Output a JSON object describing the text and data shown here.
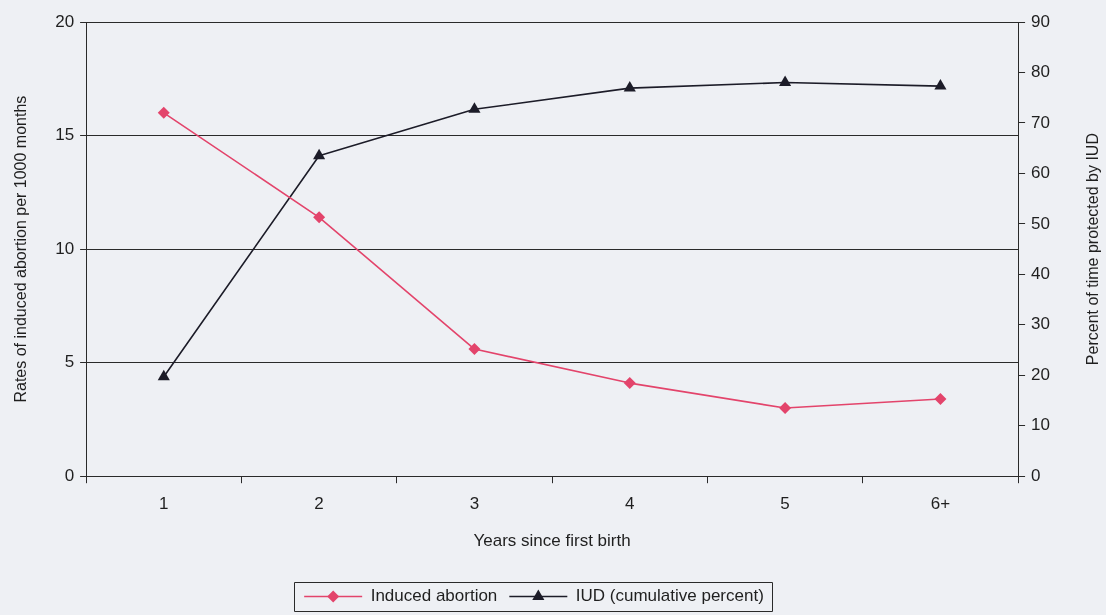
{
  "chart_data": {
    "type": "line",
    "xlabel": "Years since first birth",
    "ylabel": "Rates of induced abortion per 1000 months",
    "y2label": "Percent of time protected by IUD",
    "categories": [
      "1",
      "2",
      "3",
      "4",
      "5",
      "6+"
    ],
    "series": [
      {
        "name": "Induced abortion",
        "color": "#e3446b",
        "marker": "diamond",
        "values": [
          16.0,
          11.4,
          5.6,
          4.1,
          3.0,
          3.4
        ]
      },
      {
        "name": "IUD (cumulative percent)",
        "color": "#1c1c28",
        "marker": "triangle",
        "axis": "y2",
        "values": [
          19.7,
          63.5,
          72.7,
          76.9,
          78.0,
          77.3
        ]
      }
    ],
    "ylim": [
      0,
      20
    ],
    "yticks": [
      0,
      5,
      10,
      15,
      20
    ],
    "y2lim": [
      0,
      90
    ],
    "y2ticks": [
      0,
      10,
      20,
      30,
      40,
      50,
      60,
      70,
      80,
      90
    ],
    "grid": "y",
    "legend": "bottom",
    "line_style": "solid"
  }
}
